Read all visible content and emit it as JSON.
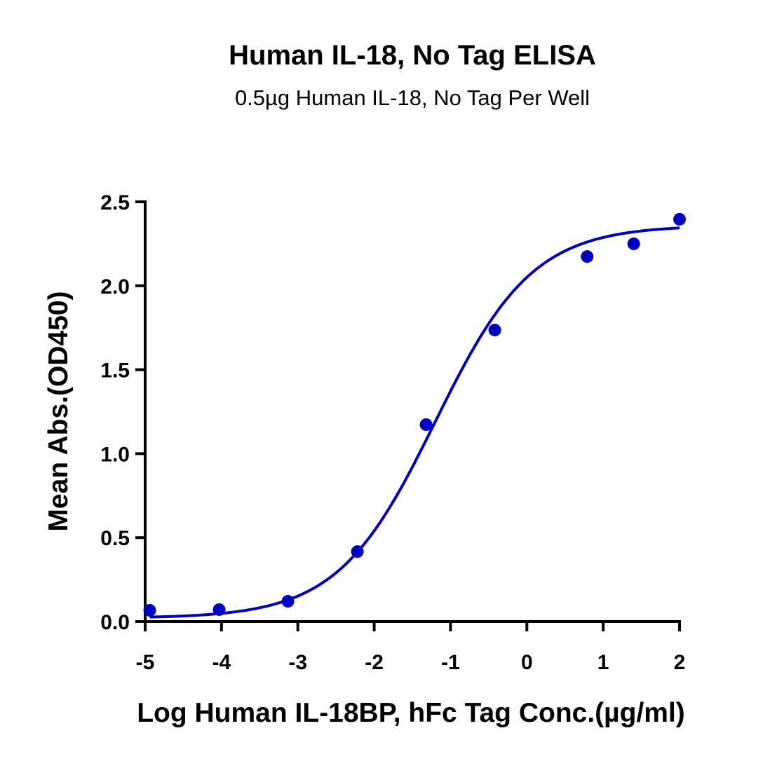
{
  "chart_data": {
    "type": "scatter",
    "title": "Human IL-18, No Tag ELISA",
    "subtitle": "0.5µg Human IL-18, No Tag Per Well",
    "xlabel": "Log Human IL-18BP, hFc Tag Conc.(µg/ml)",
    "ylabel": "Mean Abs.(OD450)",
    "xlim": [
      -5,
      2
    ],
    "ylim": [
      0,
      2.5
    ],
    "xticks": [
      -5,
      -4,
      -3,
      -2,
      -1,
      0,
      1,
      2
    ],
    "xtick_labels": [
      "-5",
      "-4",
      "-3",
      "-2",
      "-1",
      "0",
      "1",
      "2"
    ],
    "yticks": [
      0,
      0.5,
      1,
      1.5,
      2,
      2.5
    ],
    "ytick_labels": [
      "0.0",
      "0.5",
      "1.0",
      "1.5",
      "2.0",
      "2.5"
    ],
    "grid": false,
    "color": "#0000C0",
    "points": {
      "x": [
        -4.94,
        -4.03,
        -3.13,
        -2.22,
        -1.32,
        -0.42,
        0.79,
        1.4,
        2.0
      ],
      "y": [
        0.067,
        0.071,
        0.121,
        0.417,
        1.173,
        1.736,
        2.174,
        2.25,
        2.396
      ]
    },
    "fit_curve": {
      "model": "4PL",
      "bottom": 0.02,
      "top": 2.36,
      "logEC50": -1.2,
      "hill": 0.68,
      "x_range": [
        -4.94,
        2.0
      ]
    }
  }
}
